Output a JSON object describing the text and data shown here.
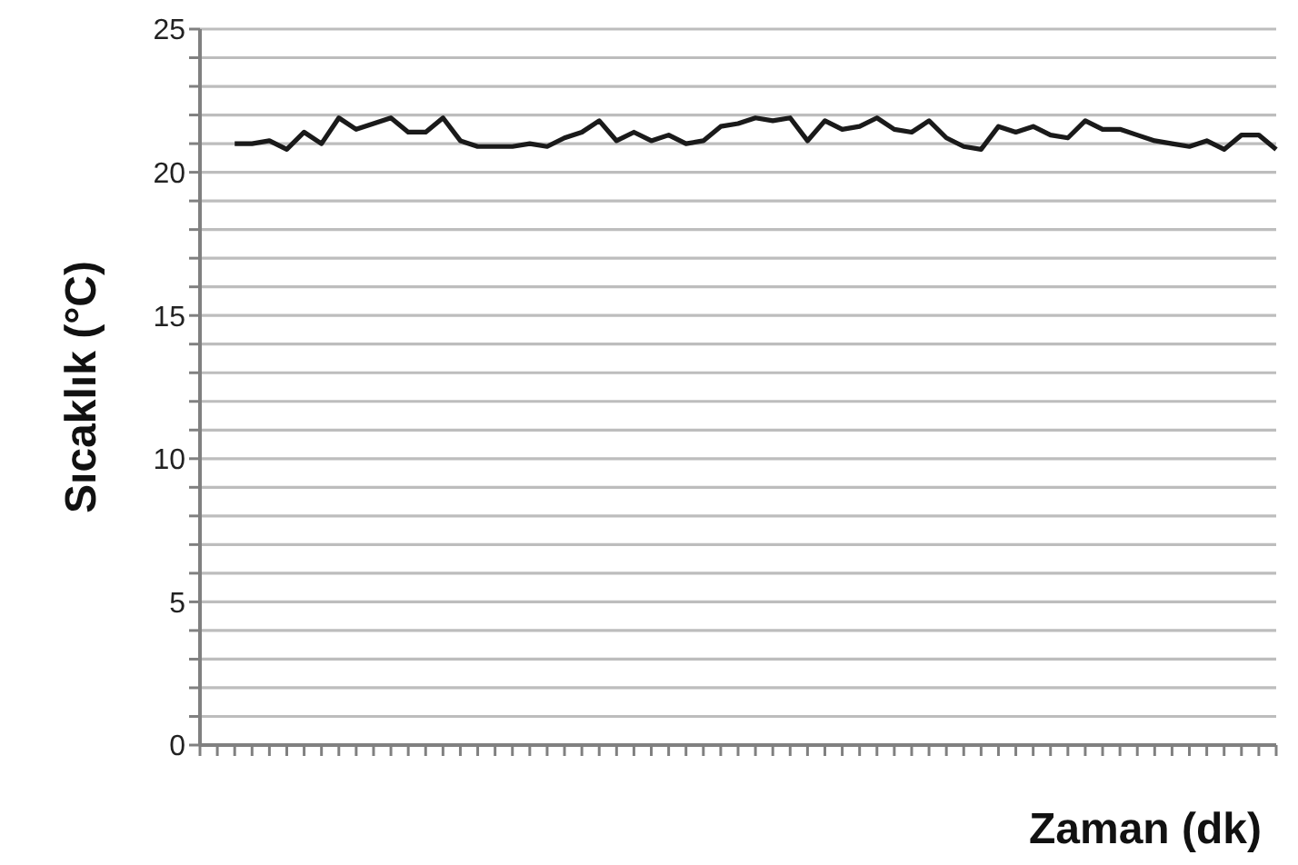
{
  "chart_data": {
    "type": "line",
    "xlabel": "Zaman (dk)",
    "ylabel": "Sıcaklık (°C)",
    "categories": [
      null,
      null,
      null,
      null,
      null,
      null,
      null,
      null,
      null,
      null,
      null,
      null,
      null,
      null,
      null,
      null,
      null,
      null,
      null,
      null,
      null,
      null,
      null,
      null,
      null,
      null,
      null,
      null,
      null,
      null,
      null,
      null,
      null,
      null,
      null,
      null,
      null,
      null,
      null,
      null,
      null,
      null,
      null,
      null,
      null,
      null,
      null,
      null,
      null,
      null,
      null,
      null,
      null,
      null,
      null,
      null,
      null,
      null,
      null,
      null,
      null,
      null,
      null
    ],
    "series": [
      {
        "color": "#1a1a1a",
        "values": [
          null,
          null,
          21.0,
          21.0,
          21.1,
          20.8,
          21.4,
          21.0,
          21.9,
          21.5,
          21.7,
          21.9,
          21.4,
          21.4,
          21.9,
          21.1,
          20.9,
          20.9,
          20.9,
          21.0,
          20.9,
          21.2,
          21.4,
          21.8,
          21.1,
          21.4,
          21.1,
          21.3,
          21.0,
          21.1,
          21.6,
          21.7,
          21.9,
          21.8,
          21.9,
          21.1,
          21.8,
          21.5,
          21.6,
          21.9,
          21.5,
          21.4,
          21.8,
          21.2,
          20.9,
          20.8,
          21.6,
          21.4,
          21.6,
          21.3,
          21.2,
          21.8,
          21.5,
          21.5,
          21.3,
          21.1,
          21.0,
          20.9,
          21.1,
          20.8,
          21.3,
          21.3,
          20.8
        ]
      }
    ],
    "ylim": [
      0,
      25
    ],
    "yticks": [
      0,
      {
        "value": 1,
        "label": null
      },
      {
        "value": 2,
        "label": null
      },
      {
        "value": 3,
        "label": null
      },
      {
        "value": 4,
        "label": null
      },
      5,
      {
        "value": 6,
        "label": null
      },
      {
        "value": 7,
        "label": null
      },
      {
        "value": 8,
        "label": null
      },
      {
        "value": 9,
        "label": null
      },
      10,
      {
        "value": 11,
        "label": null
      },
      {
        "value": 12,
        "label": null
      },
      {
        "value": 13,
        "label": null
      },
      {
        "value": 14,
        "label": null
      },
      15,
      {
        "value": 16,
        "label": null
      },
      {
        "value": 17,
        "label": null
      },
      {
        "value": 18,
        "label": null
      },
      {
        "value": 19,
        "label": null
      },
      20,
      {
        "value": 21,
        "label": null
      },
      {
        "value": 22,
        "label": null
      },
      {
        "value": 23,
        "label": null
      },
      {
        "value": 24,
        "label": null
      },
      25
    ],
    "grid": "y",
    "legend": false,
    "marker": "none",
    "line_style": "solid",
    "tick_labels": "y"
  }
}
